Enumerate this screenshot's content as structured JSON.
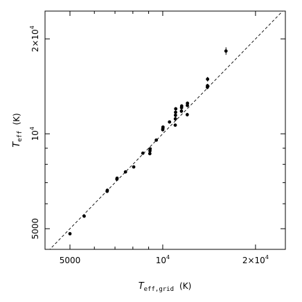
{
  "chart_data": {
    "type": "scatter",
    "x_scale": "log",
    "y_scale": "log",
    "xlim": [
      4150,
      25000
    ],
    "ylim": [
      4300,
      24500
    ],
    "xlabel": {
      "symbol": "T",
      "subscript": "eff,grid",
      "unit": "(K)"
    },
    "ylabel": {
      "symbol": "T",
      "subscript": "eff",
      "unit": "(K)"
    },
    "x_major_ticks": [
      {
        "value": 5000,
        "label_mantissa": "5000",
        "label_exp": ""
      },
      {
        "value": 10000,
        "label_mantissa": "10",
        "label_exp": "4"
      },
      {
        "value": 20000,
        "label_mantissa": "2×10",
        "label_exp": "4"
      }
    ],
    "y_major_ticks": [
      {
        "value": 5000,
        "label_mantissa": "5000",
        "label_exp": ""
      },
      {
        "value": 10000,
        "label_mantissa": "10",
        "label_exp": "4"
      },
      {
        "value": 20000,
        "label_mantissa": "2×10",
        "label_exp": "4"
      }
    ],
    "reference_line": {
      "style": "dashed",
      "relation": "y = x"
    },
    "grid": false,
    "points": [
      {
        "x": 5000,
        "y": 4820,
        "yerr": 40
      },
      {
        "x": 5560,
        "y": 5480,
        "yerr": 40
      },
      {
        "x": 6600,
        "y": 6570,
        "yerr": 60
      },
      {
        "x": 6610,
        "y": 6620,
        "yerr": 60
      },
      {
        "x": 7100,
        "y": 7180,
        "yerr": 60
      },
      {
        "x": 7110,
        "y": 7230,
        "yerr": 60
      },
      {
        "x": 7570,
        "y": 7570,
        "yerr": 60
      },
      {
        "x": 8050,
        "y": 7850,
        "yerr": 60
      },
      {
        "x": 8620,
        "y": 8680,
        "yerr": 80
      },
      {
        "x": 9080,
        "y": 8650,
        "yerr": 80
      },
      {
        "x": 9090,
        "y": 8830,
        "yerr": 100
      },
      {
        "x": 9100,
        "y": 8960,
        "yerr": 100
      },
      {
        "x": 9530,
        "y": 9550,
        "yerr": 80
      },
      {
        "x": 10000,
        "y": 10300,
        "yerr": 120
      },
      {
        "x": 10010,
        "y": 10400,
        "yerr": 120
      },
      {
        "x": 10020,
        "y": 10500,
        "yerr": 120
      },
      {
        "x": 10520,
        "y": 10900,
        "yerr": 120
      },
      {
        "x": 10980,
        "y": 10650,
        "yerr": 120
      },
      {
        "x": 10990,
        "y": 11150,
        "yerr": 150
      },
      {
        "x": 11000,
        "y": 11450,
        "yerr": 150
      },
      {
        "x": 11010,
        "y": 11700,
        "yerr": 150
      },
      {
        "x": 11020,
        "y": 12000,
        "yerr": 150
      },
      {
        "x": 11500,
        "y": 11800,
        "yerr": 150
      },
      {
        "x": 11510,
        "y": 12100,
        "yerr": 150
      },
      {
        "x": 11520,
        "y": 12250,
        "yerr": 150
      },
      {
        "x": 12010,
        "y": 11500,
        "yerr": 150
      },
      {
        "x": 12020,
        "y": 12300,
        "yerr": 150
      },
      {
        "x": 12030,
        "y": 12500,
        "yerr": 150
      },
      {
        "x": 13960,
        "y": 14050,
        "yerr": 200
      },
      {
        "x": 13970,
        "y": 14200,
        "yerr": 200
      },
      {
        "x": 13980,
        "y": 14900,
        "yerr": 250
      },
      {
        "x": 16040,
        "y": 18300,
        "yerr": 500
      }
    ]
  }
}
